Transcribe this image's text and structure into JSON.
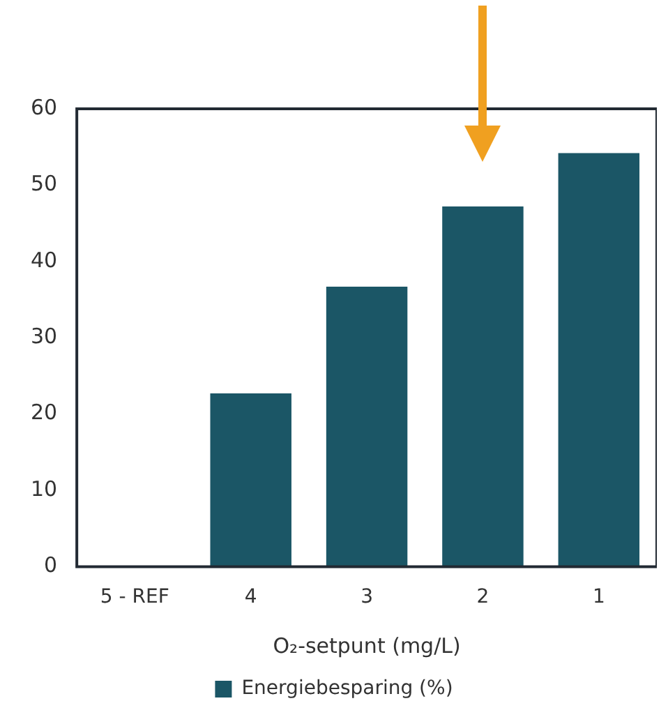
{
  "chart_data": {
    "type": "bar",
    "xlabel": "O₂-setpunt (mg/L)",
    "categories": [
      "5 - REF",
      "4",
      "3",
      "2",
      "1"
    ],
    "series": [
      {
        "name": "Energiebesparing (%)",
        "color": "#1b5666",
        "values": [
          0,
          22.7,
          36.7,
          47.2,
          54.2
        ]
      }
    ],
    "ylim": [
      0,
      60
    ],
    "yticks": [
      0,
      10,
      20,
      30,
      40,
      50,
      60
    ],
    "grid": false,
    "legend": "bottom"
  }
}
